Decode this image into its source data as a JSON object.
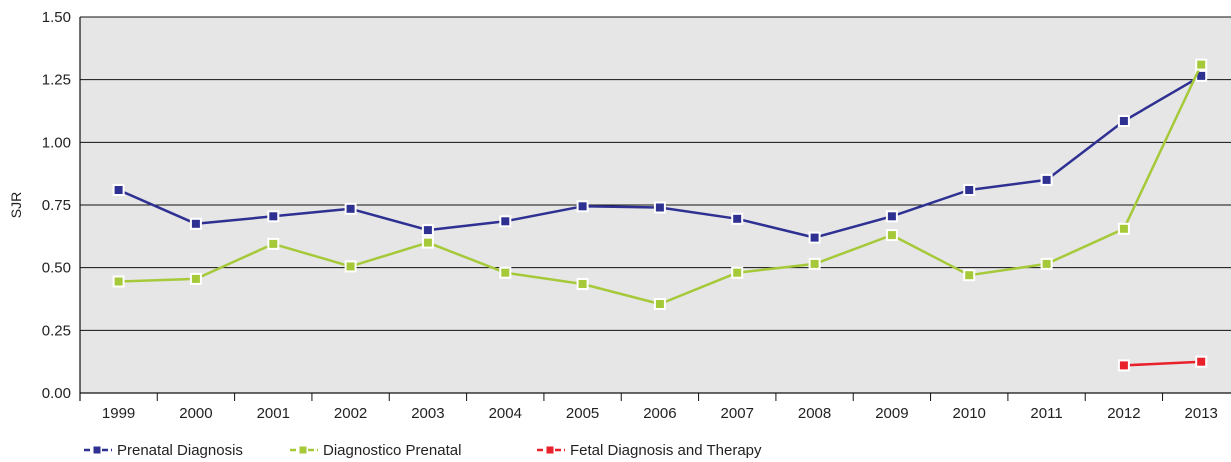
{
  "chart_data": {
    "type": "line",
    "title": "",
    "xlabel": "",
    "ylabel": "SJR",
    "categories": [
      "1999",
      "2000",
      "2001",
      "2002",
      "2003",
      "2004",
      "2005",
      "2006",
      "2007",
      "2008",
      "2009",
      "2010",
      "2011",
      "2012",
      "2013"
    ],
    "yticks": [
      "0.00",
      "0.25",
      "0.50",
      "0.75",
      "1.00",
      "1.25",
      "1.50"
    ],
    "ylim": [
      0,
      1.5
    ],
    "grid": true,
    "legend_position": "bottom-left",
    "plot_background": "#e6e6e6",
    "series": [
      {
        "name": "Prenatal Diagnosis",
        "color": "#2e3192",
        "values": [
          0.81,
          0.675,
          0.705,
          0.735,
          0.65,
          0.685,
          0.745,
          0.74,
          0.695,
          0.62,
          0.705,
          0.81,
          0.85,
          1.085,
          1.265
        ]
      },
      {
        "name": "Diagnostico Prenatal",
        "color": "#a6c93a",
        "values": [
          0.445,
          0.455,
          0.595,
          0.505,
          0.6,
          0.48,
          0.435,
          0.355,
          0.48,
          0.515,
          0.63,
          0.47,
          0.515,
          0.655,
          1.31
        ]
      },
      {
        "name": "Fetal Diagnosis and Therapy",
        "color": "#e8212b",
        "values": [
          null,
          null,
          null,
          null,
          null,
          null,
          null,
          null,
          null,
          null,
          null,
          null,
          null,
          0.11,
          0.125
        ]
      }
    ]
  }
}
